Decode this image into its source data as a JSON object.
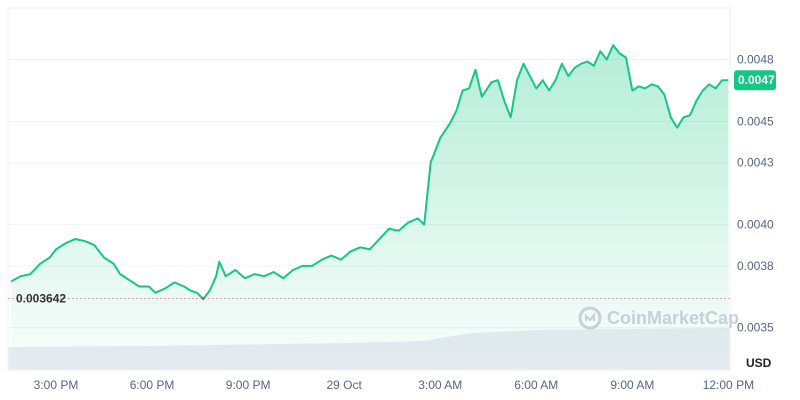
{
  "chart_data": {
    "type": "area",
    "currency": "USD",
    "watermark": "CoinMarketCap",
    "reference": {
      "value": 0.003642,
      "label": "0.003642"
    },
    "current": {
      "value": 0.0047,
      "label": "0.0047"
    },
    "yticks": [
      {
        "value": 0.0035,
        "label": "0.0035"
      },
      {
        "value": 0.0038,
        "label": "0.0038"
      },
      {
        "value": 0.004,
        "label": "0.0040"
      },
      {
        "value": 0.0043,
        "label": "0.0043"
      },
      {
        "value": 0.0045,
        "label": "0.0045"
      },
      {
        "value": 0.0048,
        "label": "0.0048"
      }
    ],
    "xticks": [
      "3:00 PM",
      "6:00 PM",
      "9:00 PM",
      "29 Oct",
      "3:00 AM",
      "6:00 AM",
      "9:00 AM",
      "12:00 PM"
    ],
    "ylim": [
      0.0033,
      0.00505
    ],
    "xrange_hours": [
      13.5,
      36.05
    ],
    "xtick_hours": [
      15,
      18,
      21,
      24,
      27,
      30,
      33,
      36
    ],
    "colors": {
      "up": "#16c784",
      "down": "#ea3943",
      "grid": "#eff2f5",
      "ref": "#e8a3a7",
      "volume": "#e9ecf2"
    },
    "series": [
      {
        "values": [
          [
            13.6,
            0.003725
          ],
          [
            13.9,
            0.00375
          ],
          [
            14.2,
            0.00376
          ],
          [
            14.5,
            0.00381
          ],
          [
            14.8,
            0.00384
          ],
          [
            15.0,
            0.00388
          ],
          [
            15.3,
            0.00391
          ],
          [
            15.6,
            0.00393
          ],
          [
            15.9,
            0.00392
          ],
          [
            16.2,
            0.0039
          ],
          [
            16.5,
            0.00384
          ],
          [
            16.8,
            0.00381
          ],
          [
            17.0,
            0.00376
          ],
          [
            17.3,
            0.00373
          ],
          [
            17.6,
            0.0037
          ],
          [
            17.9,
            0.0037
          ],
          [
            18.1,
            0.00367
          ],
          [
            18.4,
            0.00369
          ],
          [
            18.7,
            0.00372
          ],
          [
            19.0,
            0.0037
          ],
          [
            19.2,
            0.00368
          ],
          [
            19.4,
            0.00367
          ],
          [
            19.6,
            0.00364
          ],
          [
            19.8,
            0.00368
          ],
          [
            20.0,
            0.00375
          ],
          [
            20.1,
            0.00382
          ],
          [
            20.3,
            0.00375
          ],
          [
            20.6,
            0.00378
          ],
          [
            20.9,
            0.00374
          ],
          [
            21.2,
            0.00376
          ],
          [
            21.5,
            0.00375
          ],
          [
            21.8,
            0.00377
          ],
          [
            22.1,
            0.00374
          ],
          [
            22.4,
            0.00378
          ],
          [
            22.7,
            0.0038
          ],
          [
            23.0,
            0.0038
          ],
          [
            23.3,
            0.00383
          ],
          [
            23.6,
            0.00385
          ],
          [
            23.9,
            0.00383
          ],
          [
            24.2,
            0.00387
          ],
          [
            24.5,
            0.00389
          ],
          [
            24.8,
            0.00388
          ],
          [
            25.1,
            0.00393
          ],
          [
            25.4,
            0.00398
          ],
          [
            25.7,
            0.00397
          ],
          [
            26.0,
            0.00401
          ],
          [
            26.3,
            0.00403
          ],
          [
            26.5,
            0.004
          ],
          [
            26.7,
            0.0043
          ],
          [
            27.0,
            0.00442
          ],
          [
            27.3,
            0.00449
          ],
          [
            27.5,
            0.00455
          ],
          [
            27.7,
            0.00465
          ],
          [
            27.9,
            0.00466
          ],
          [
            28.1,
            0.00475
          ],
          [
            28.3,
            0.00462
          ],
          [
            28.6,
            0.00469
          ],
          [
            28.8,
            0.0047
          ],
          [
            29.0,
            0.0046
          ],
          [
            29.2,
            0.00452
          ],
          [
            29.4,
            0.0047
          ],
          [
            29.6,
            0.00478
          ],
          [
            29.8,
            0.00472
          ],
          [
            30.0,
            0.00466
          ],
          [
            30.2,
            0.0047
          ],
          [
            30.4,
            0.00465
          ],
          [
            30.6,
            0.0047
          ],
          [
            30.8,
            0.00478
          ],
          [
            31.0,
            0.00472
          ],
          [
            31.2,
            0.00476
          ],
          [
            31.4,
            0.00478
          ],
          [
            31.6,
            0.00479
          ],
          [
            31.8,
            0.00477
          ],
          [
            32.0,
            0.00484
          ],
          [
            32.2,
            0.0048
          ],
          [
            32.4,
            0.00487
          ],
          [
            32.6,
            0.00483
          ],
          [
            32.8,
            0.00481
          ],
          [
            33.0,
            0.00465
          ],
          [
            33.2,
            0.00467
          ],
          [
            33.4,
            0.00466
          ],
          [
            33.6,
            0.00468
          ],
          [
            33.8,
            0.00467
          ],
          [
            34.0,
            0.00463
          ],
          [
            34.2,
            0.00452
          ],
          [
            34.4,
            0.00447
          ],
          [
            34.6,
            0.00452
          ],
          [
            34.8,
            0.00453
          ],
          [
            35.0,
            0.0046
          ],
          [
            35.2,
            0.00465
          ],
          [
            35.4,
            0.00468
          ],
          [
            35.6,
            0.00466
          ],
          [
            35.8,
            0.0047
          ],
          [
            36.0,
            0.0047
          ]
        ]
      }
    ]
  }
}
